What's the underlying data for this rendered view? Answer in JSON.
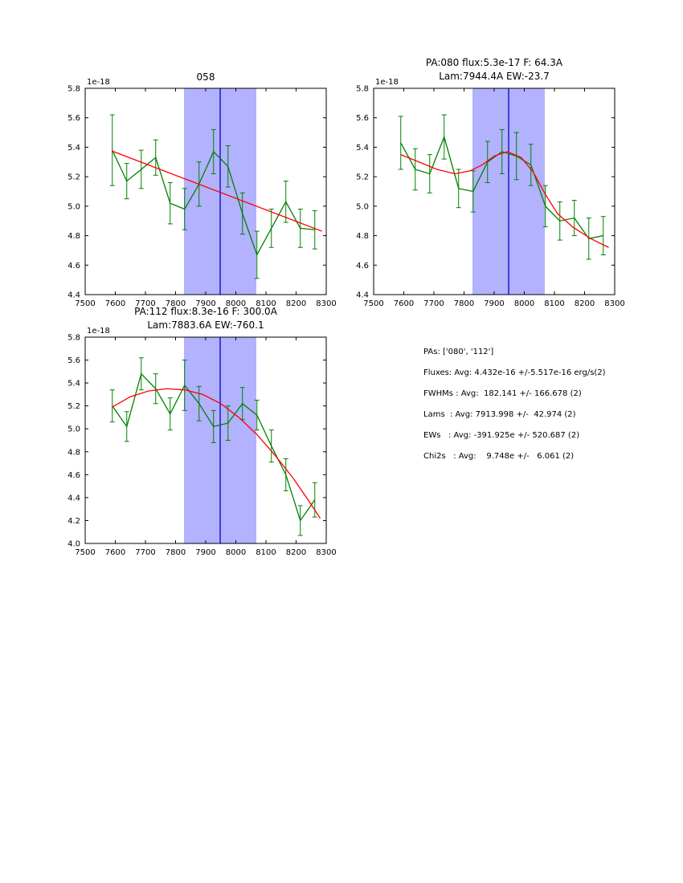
{
  "figure": {
    "background": "#ffffff"
  },
  "info_panel": {
    "lines": [
      "PAs: ['080', '112']",
      "Fluxes: Avg: 4.432e-16 +/-5.517e-16 erg/s(2)",
      "FWHMs : Avg:  182.141 +/- 166.678 (2)",
      "Lams  : Avg: 7913.998 +/-  42.974 (2)",
      "EWs   : Avg: -391.925e +/- 520.687 (2)",
      "Chi2s   : Avg:    9.748e +/-   6.061 (2)"
    ]
  },
  "chart_data": [
    {
      "type": "line",
      "title_lines": [
        "058"
      ],
      "xlim": [
        7500,
        8300
      ],
      "ylim": [
        4.4,
        5.8
      ],
      "xticks": [
        7500,
        7600,
        7700,
        7800,
        7900,
        8000,
        8100,
        8200,
        8300
      ],
      "yticks": [
        4.4,
        4.6,
        4.8,
        5.0,
        5.2,
        5.4,
        5.6,
        5.8
      ],
      "offset_label": "1e-18",
      "grid": false,
      "band": {
        "x0": 7828,
        "x1": 8068,
        "color": "#b2b2ff"
      },
      "vline": {
        "x": 7948,
        "color": "#0000cc"
      },
      "series": [
        {
          "name": "data",
          "color": "#008000",
          "x": [
            7590,
            7638,
            7686,
            7734,
            7782,
            7830,
            7878,
            7926,
            7974,
            8022,
            8070,
            8118,
            8166,
            8214,
            8262
          ],
          "y": [
            5.38,
            5.17,
            5.25,
            5.33,
            5.02,
            4.98,
            5.15,
            5.37,
            5.27,
            4.95,
            4.67,
            4.85,
            5.03,
            4.85,
            4.84
          ],
          "yerr": [
            0.24,
            0.12,
            0.13,
            0.12,
            0.14,
            0.14,
            0.15,
            0.15,
            0.14,
            0.14,
            0.16,
            0.13,
            0.14,
            0.13,
            0.13
          ]
        },
        {
          "name": "fit",
          "color": "#ff0000",
          "x": [
            7588,
            8286
          ],
          "y": [
            5.375,
            4.83
          ]
        }
      ]
    },
    {
      "type": "line",
      "title_lines": [
        "PA:080 flux:5.3e-17 F: 64.3A",
        "Lam:7944.4A EW:-23.7"
      ],
      "xlim": [
        7500,
        8300
      ],
      "ylim": [
        4.4,
        5.8
      ],
      "xticks": [
        7500,
        7600,
        7700,
        7800,
        7900,
        8000,
        8100,
        8200,
        8300
      ],
      "yticks": [
        4.4,
        4.6,
        4.8,
        5.0,
        5.2,
        5.4,
        5.6,
        5.8
      ],
      "offset_label": "1e-18",
      "grid": false,
      "band": {
        "x0": 7828,
        "x1": 8068,
        "color": "#b2b2ff"
      },
      "vline": {
        "x": 7948,
        "color": "#0000cc"
      },
      "series": [
        {
          "name": "data",
          "color": "#008000",
          "x": [
            7590,
            7638,
            7686,
            7734,
            7782,
            7830,
            7878,
            7926,
            7974,
            8022,
            8070,
            8118,
            8166,
            8214,
            8262
          ],
          "y": [
            5.43,
            5.25,
            5.22,
            5.47,
            5.12,
            5.1,
            5.3,
            5.37,
            5.34,
            5.28,
            5.0,
            4.9,
            4.92,
            4.78,
            4.8
          ],
          "yerr": [
            0.18,
            0.14,
            0.13,
            0.15,
            0.13,
            0.14,
            0.14,
            0.15,
            0.16,
            0.14,
            0.14,
            0.13,
            0.12,
            0.14,
            0.13
          ]
        },
        {
          "name": "fit",
          "color": "#ff0000",
          "x": [
            7590,
            7650,
            7710,
            7770,
            7820,
            7860,
            7900,
            7944,
            7990,
            8030,
            8070,
            8110,
            8160,
            8220,
            8280
          ],
          "y": [
            5.35,
            5.3,
            5.25,
            5.22,
            5.24,
            5.28,
            5.34,
            5.37,
            5.33,
            5.23,
            5.08,
            4.95,
            4.86,
            4.78,
            4.72
          ]
        }
      ]
    },
    {
      "type": "line",
      "title_lines": [
        "PA:112 flux:8.3e-16 F: 300.0A",
        "Lam:7883.6A EW:-760.1"
      ],
      "xlim": [
        7500,
        8300
      ],
      "ylim": [
        4.0,
        5.8
      ],
      "xticks": [
        7500,
        7600,
        7700,
        7800,
        7900,
        8000,
        8100,
        8200,
        8300
      ],
      "yticks": [
        4.0,
        4.2,
        4.4,
        4.6,
        4.8,
        5.0,
        5.2,
        5.4,
        5.6,
        5.8
      ],
      "offset_label": "1e-18",
      "grid": false,
      "band": {
        "x0": 7828,
        "x1": 8068,
        "color": "#b2b2ff"
      },
      "vline": {
        "x": 7948,
        "color": "#0000cc"
      },
      "series": [
        {
          "name": "data",
          "color": "#008000",
          "x": [
            7590,
            7638,
            7686,
            7734,
            7782,
            7830,
            7878,
            7926,
            7974,
            8022,
            8070,
            8118,
            8166,
            8214,
            8262
          ],
          "y": [
            5.2,
            5.02,
            5.48,
            5.35,
            5.13,
            5.38,
            5.22,
            5.02,
            5.05,
            5.22,
            5.12,
            4.85,
            4.6,
            4.2,
            4.38
          ],
          "yerr": [
            0.14,
            0.13,
            0.14,
            0.13,
            0.14,
            0.22,
            0.15,
            0.14,
            0.15,
            0.14,
            0.13,
            0.14,
            0.14,
            0.13,
            0.15
          ]
        },
        {
          "name": "fit",
          "color": "#ff0000",
          "x": [
            7590,
            7650,
            7710,
            7770,
            7830,
            7890,
            7950,
            8010,
            8070,
            8130,
            8190,
            8240,
            8280
          ],
          "y": [
            5.19,
            5.28,
            5.33,
            5.35,
            5.34,
            5.3,
            5.22,
            5.1,
            4.95,
            4.77,
            4.57,
            4.38,
            4.22
          ]
        }
      ]
    }
  ]
}
